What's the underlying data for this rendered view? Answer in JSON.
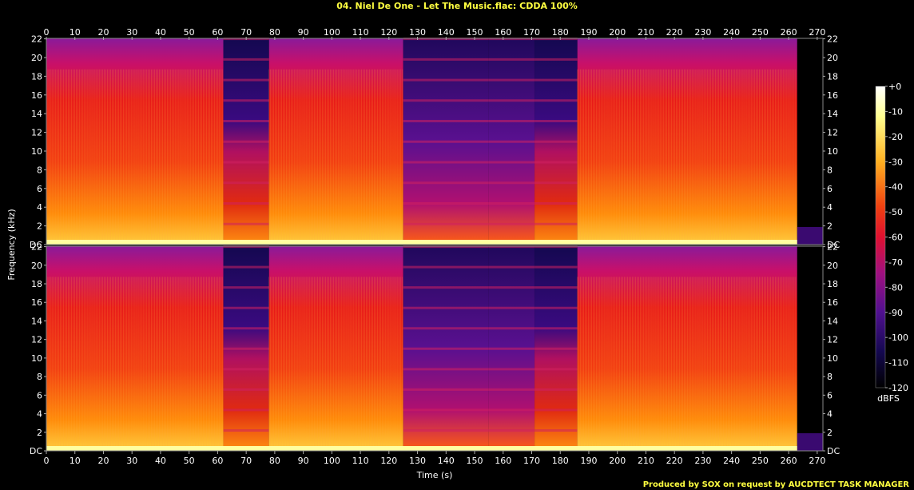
{
  "title": "04. Niel De One - Let The Music.flac: CDDA 100%",
  "footer": "Produced by SOX on request by AUCDTECT TASK MANAGER",
  "chart_data": {
    "type": "heatmap",
    "title": "04. Niel De One - Let The Music.flac: CDDA 100%",
    "xlabel": "Time (s)",
    "ylabel": "Frequency (kHz)",
    "xlim": [
      0,
      272
    ],
    "x_ticks": [
      0,
      10,
      20,
      30,
      40,
      50,
      60,
      70,
      80,
      90,
      100,
      110,
      120,
      130,
      140,
      150,
      160,
      170,
      180,
      190,
      200,
      210,
      220,
      230,
      240,
      250,
      260,
      270
    ],
    "ylim": [
      0,
      22.05
    ],
    "y_tick_labels": [
      "DC",
      "2",
      "4",
      "6",
      "8",
      "10",
      "12",
      "14",
      "16",
      "18",
      "20",
      "22"
    ],
    "channels": 2,
    "colorbar": {
      "label": "dBFS",
      "range": [
        -120,
        0
      ],
      "tick_labels": [
        "+0",
        "-10",
        "-20",
        "-30",
        "-40",
        "-50",
        "-60",
        "-70",
        "-80",
        "-90",
        "-100",
        "-110",
        "-120"
      ]
    },
    "segments": [
      {
        "start": 0,
        "end": 62,
        "level": "loud"
      },
      {
        "start": 62,
        "end": 78,
        "level": "quiet-high"
      },
      {
        "start": 78,
        "end": 125,
        "level": "loud"
      },
      {
        "start": 125,
        "end": 155,
        "level": "sweep"
      },
      {
        "start": 155,
        "end": 171,
        "level": "sweep"
      },
      {
        "start": 171,
        "end": 186,
        "level": "quiet-high"
      },
      {
        "start": 186,
        "end": 263,
        "level": "loud"
      },
      {
        "start": 263,
        "end": 272,
        "level": "silence"
      }
    ]
  }
}
